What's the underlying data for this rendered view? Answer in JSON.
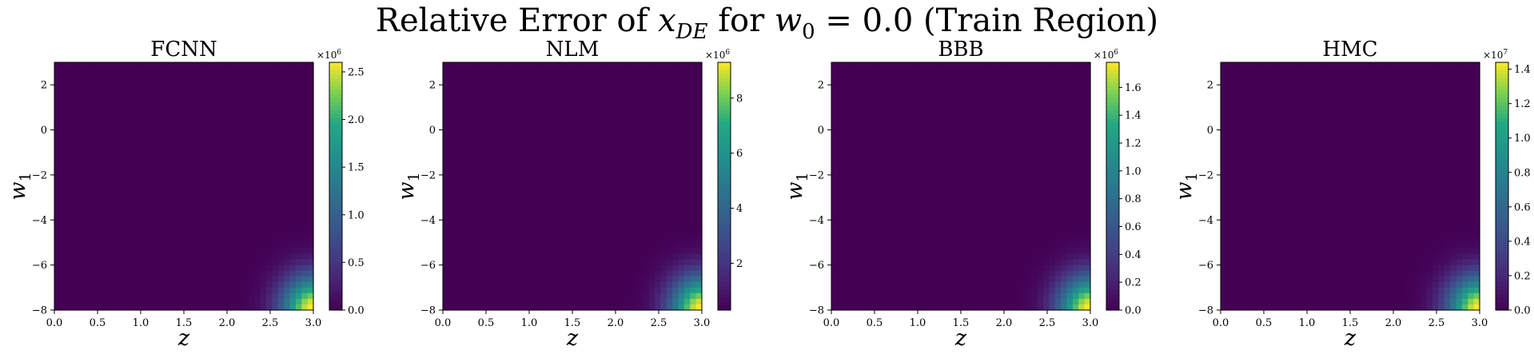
{
  "figure": {
    "title_prefix": "Relative Error of ",
    "title_var": "x",
    "title_var_sub": "DE",
    "title_mid": " for ",
    "title_param": "w",
    "title_param_sub": "0",
    "title_suffix": " = 0.0 (Train Region)"
  },
  "chart_data": [
    {
      "type": "heatmap",
      "title": "FCNN",
      "xlabel": "z",
      "ylabel": "w",
      "ylabel_sub": "1",
      "xlim": [
        0.0,
        3.0
      ],
      "ylim": [
        -8,
        3
      ],
      "xticks": [
        "0.0",
        "0.5",
        "1.0",
        "1.5",
        "2.0",
        "2.5",
        "3.0"
      ],
      "yticks": [
        "2",
        "0",
        "−2",
        "−4",
        "−6",
        "−8"
      ],
      "colormap": "viridis",
      "colorbar": {
        "range": [
          0.0,
          2.6
        ],
        "ticks": [
          "0.0",
          "0.5",
          "1.0",
          "1.5",
          "2.0",
          "2.5"
        ],
        "multiplier": "×10",
        "multiplier_exp": "6"
      },
      "hotspot": "z = 3.0, w1 = −8 (bottom-right corner)"
    },
    {
      "type": "heatmap",
      "title": "NLM",
      "xlabel": "z",
      "ylabel": "w",
      "ylabel_sub": "1",
      "xlim": [
        0.0,
        3.0
      ],
      "ylim": [
        -8,
        3
      ],
      "xticks": [
        "0.0",
        "0.5",
        "1.0",
        "1.5",
        "2.0",
        "2.5",
        "3.0"
      ],
      "yticks": [
        "2",
        "0",
        "−2",
        "−4",
        "−6",
        "−8"
      ],
      "colormap": "viridis",
      "colorbar": {
        "range": [
          0.3,
          9.3
        ],
        "ticks": [
          "2",
          "4",
          "6",
          "8"
        ],
        "multiplier": "×10",
        "multiplier_exp": "6"
      },
      "hotspot": "z = 3.0, w1 = −8 (bottom-right corner)"
    },
    {
      "type": "heatmap",
      "title": "BBB",
      "xlabel": "z",
      "ylabel": "w",
      "ylabel_sub": "1",
      "xlim": [
        0.0,
        3.0
      ],
      "ylim": [
        -8,
        3
      ],
      "xticks": [
        "0.0",
        "0.5",
        "1.0",
        "1.5",
        "2.0",
        "2.5",
        "3.0"
      ],
      "yticks": [
        "2",
        "0",
        "−2",
        "−4",
        "−6",
        "−8"
      ],
      "colormap": "viridis",
      "colorbar": {
        "range": [
          0.0,
          1.78
        ],
        "ticks": [
          "0.0",
          "0.2",
          "0.4",
          "0.6",
          "0.8",
          "1.0",
          "1.2",
          "1.4",
          "1.6"
        ],
        "multiplier": "×10",
        "multiplier_exp": "6"
      },
      "hotspot": "z = 3.0, w1 = −8 (bottom-right corner)"
    },
    {
      "type": "heatmap",
      "title": "HMC",
      "xlabel": "z",
      "ylabel": "w",
      "ylabel_sub": "1",
      "xlim": [
        0.0,
        3.0
      ],
      "ylim": [
        -8,
        3
      ],
      "xticks": [
        "0.0",
        "0.5",
        "1.0",
        "1.5",
        "2.0",
        "2.5",
        "3.0"
      ],
      "yticks": [
        "2",
        "0",
        "−2",
        "−4",
        "−6",
        "−8"
      ],
      "colormap": "viridis",
      "colorbar": {
        "range": [
          0.0,
          1.44
        ],
        "ticks": [
          "0.0",
          "0.2",
          "0.4",
          "0.6",
          "0.8",
          "1.0",
          "1.2",
          "1.4"
        ],
        "multiplier": "×10",
        "multiplier_exp": "7"
      },
      "hotspot": "z = 3.0, w1 = −8 (bottom-right corner)"
    }
  ]
}
